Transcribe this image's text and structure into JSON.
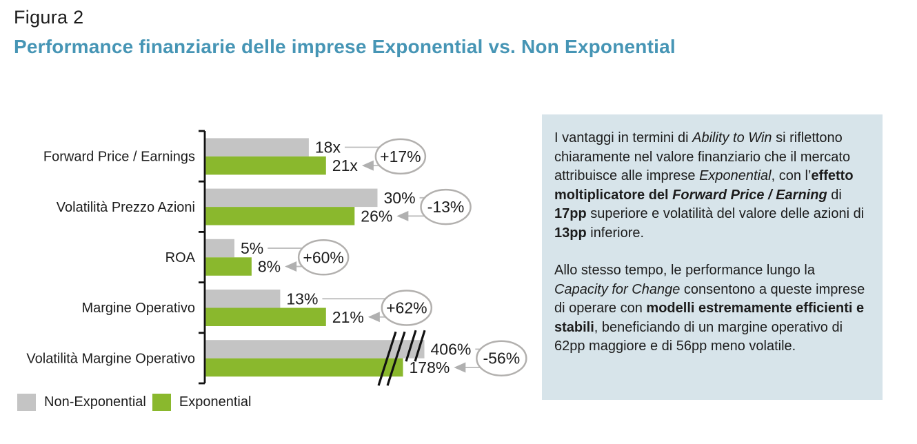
{
  "figure": {
    "label": "Figura 2",
    "title": "Performance finanziarie delle imprese Exponential vs. Non Exponential"
  },
  "colors": {
    "accent_teal": "#4695b5",
    "non_exponential": "#c4c4c4",
    "exponential": "#8ab82d",
    "panel_bg": "#d7e4ea",
    "annotation_line": "#c0c0c0",
    "annotation_ellipse": "#b2b0ae",
    "arrowhead": "#b0b0b0",
    "axis": "#111111",
    "text": "#1c1c1c"
  },
  "chart_data": {
    "type": "bar",
    "orientation": "horizontal",
    "legend_position": "bottom-left",
    "grid": false,
    "series_names": [
      "Non-Exponential",
      "Exponential"
    ],
    "rows": [
      {
        "category": "Forward Price / Earnings",
        "non_exponential": 18,
        "non_exponential_label": "18x",
        "exponential": 21,
        "exponential_label": "21x",
        "delta_label": "+17%",
        "axis_break": false
      },
      {
        "category": "Volatilità Prezzo Azioni",
        "non_exponential": 30,
        "non_exponential_label": "30%",
        "exponential": 26,
        "exponential_label": "26%",
        "delta_label": "-13%",
        "axis_break": false
      },
      {
        "category": "ROA",
        "non_exponential": 5,
        "non_exponential_label": "5%",
        "exponential": 8,
        "exponential_label": "8%",
        "delta_label": "+60%",
        "axis_break": false
      },
      {
        "category": "Margine Operativo",
        "non_exponential": 13,
        "non_exponential_label": "13%",
        "exponential": 21,
        "exponential_label": "21%",
        "delta_label": "+62%",
        "axis_break": false
      },
      {
        "category": "Volatilità Margine Operativo",
        "non_exponential": 406,
        "non_exponential_label": "406%",
        "exponential": 178,
        "exponential_label": "178%",
        "delta_label": "-56%",
        "axis_break": true
      }
    ]
  },
  "legend": {
    "items": [
      {
        "label": "Non-Exponential",
        "color_key": "non_exponential"
      },
      {
        "label": "Exponential",
        "color_key": "exponential"
      }
    ]
  },
  "panel": {
    "paragraphs": [
      {
        "segments": [
          {
            "t": "I vantaggi in termini di ",
            "s": ""
          },
          {
            "t": "Ability to Win",
            "s": "i"
          },
          {
            "t": " si riflettono chiaramente nel valore finanziario che il mercato attribuisce alle imprese ",
            "s": ""
          },
          {
            "t": "Exponential",
            "s": "i"
          },
          {
            "t": ", con l’",
            "s": ""
          },
          {
            "t": "effetto moltiplicatore del ",
            "s": "b"
          },
          {
            "t": "Forward Price / Earning",
            "s": "bi"
          },
          {
            "t": " di ",
            "s": ""
          },
          {
            "t": "17pp",
            "s": "b"
          },
          {
            "t": " superiore e volatilità del valore delle azioni di ",
            "s": ""
          },
          {
            "t": "13pp",
            "s": "b"
          },
          {
            "t": " inferiore.",
            "s": ""
          }
        ]
      },
      {
        "segments": [
          {
            "t": "Allo stesso tempo, le performance lungo la ",
            "s": ""
          },
          {
            "t": "Capacity for Change",
            "s": "i"
          },
          {
            "t": " consentono a queste imprese di operare con ",
            "s": ""
          },
          {
            "t": "modelli estremamente efficienti e stabili",
            "s": "b"
          },
          {
            "t": ", beneficiando di un margine operativo di 62pp maggiore e di 56pp meno volatile.",
            "s": ""
          }
        ]
      }
    ]
  }
}
